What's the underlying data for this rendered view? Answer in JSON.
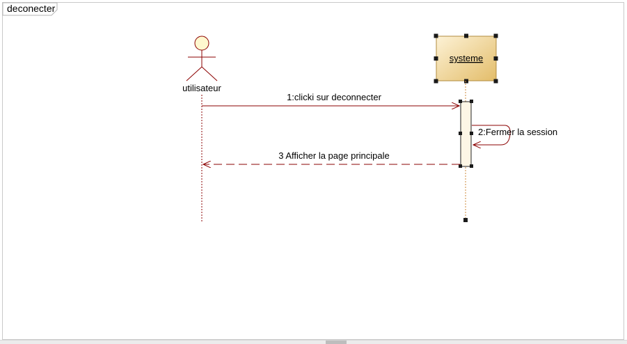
{
  "diagram": {
    "frame_title": "deconecter",
    "actor": {
      "name": "utilisateur"
    },
    "object": {
      "name": "systeme"
    },
    "messages": [
      {
        "label": "1:clicki sur deconnecter",
        "kind": "call"
      },
      {
        "label": "2:Fermer la session",
        "kind": "self"
      },
      {
        "label": "3 Afficher la page principale",
        "kind": "return"
      }
    ]
  },
  "colors": {
    "line": "#8b0000",
    "object_fill_light": "#fdf2d6",
    "object_fill_dark": "#e3bd6a",
    "object_border": "#b08b3e",
    "activation_fill": "#fdf6e6",
    "selection_handle": "#1a1a1a"
  }
}
